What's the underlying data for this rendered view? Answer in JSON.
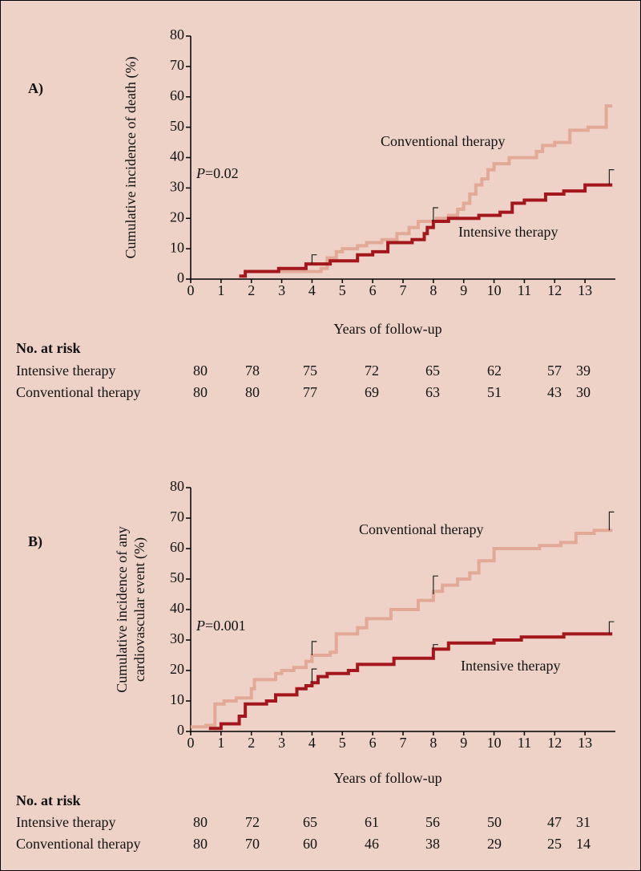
{
  "chart_data": [
    {
      "type": "step",
      "panel_label": "A)",
      "ylabel": [
        "Cumulative incidence of death (%)"
      ],
      "xlabel": "Years of follow-up",
      "p_symbol": "P",
      "p_value": "=0.02",
      "xlim": [
        0,
        14
      ],
      "ylim": [
        0,
        80
      ],
      "xticks": [
        0,
        1,
        2,
        3,
        4,
        5,
        6,
        7,
        8,
        9,
        10,
        11,
        12,
        13
      ],
      "yticks": [
        0,
        10,
        20,
        30,
        40,
        50,
        60,
        70,
        80
      ],
      "series": [
        {
          "name": "Conventional therapy",
          "color": "#e2a996",
          "x": [
            2.7,
            3.8,
            4.3,
            4.5,
            4.8,
            5.0,
            5.5,
            5.8,
            6.3,
            6.8,
            7.2,
            7.5,
            8.1,
            8.5,
            8.8,
            9.0,
            9.2,
            9.4,
            9.6,
            9.8,
            10.0,
            10.5,
            11.4,
            11.6,
            12.0,
            12.5,
            13.1,
            13.7,
            13.9
          ],
          "values": [
            2.5,
            2.5,
            3.5,
            7,
            9,
            10,
            11,
            12,
            13,
            15,
            17,
            19,
            20,
            21,
            23,
            25,
            28,
            31,
            33,
            36,
            38,
            40,
            42,
            44,
            45,
            49,
            50,
            57,
            57
          ],
          "error_bars": []
        },
        {
          "name": "Intensive therapy",
          "color": "#a3161b",
          "x": [
            1.6,
            1.8,
            2.9,
            3.8,
            4.6,
            5.5,
            6.0,
            6.5,
            7.3,
            7.7,
            7.8,
            8.0,
            8.5,
            9.5,
            10.2,
            10.6,
            11.0,
            11.7,
            12.3,
            13.0,
            13.9
          ],
          "values": [
            1,
            2.5,
            3.5,
            5,
            6,
            8,
            9,
            12,
            13,
            15,
            17,
            19,
            20,
            21,
            22,
            25,
            26,
            28,
            29,
            31,
            31
          ],
          "error_bars": [
            {
              "x": 4,
              "value": 5,
              "upper": 8
            },
            {
              "x": 8,
              "value": 19,
              "upper": 23.5
            },
            {
              "x": 13.8,
              "value": 31,
              "upper": 36
            }
          ]
        }
      ],
      "risk_table": {
        "title": "No. at risk",
        "rows": [
          {
            "name": "Intensive therapy",
            "values": [
              80,
              78,
              75,
              72,
              65,
              62,
              57,
              39
            ]
          },
          {
            "name": "Conventional therapy",
            "values": [
              80,
              80,
              77,
              69,
              63,
              51,
              43,
              30
            ]
          }
        ]
      }
    },
    {
      "type": "step",
      "panel_label": "B)",
      "ylabel": [
        "Cumulative incidence of any",
        "cardiovascular event (%)"
      ],
      "xlabel": "Years of follow-up",
      "p_symbol": "P",
      "p_value": "=0.001",
      "xlim": [
        0,
        14
      ],
      "ylim": [
        0,
        80
      ],
      "xticks": [
        0,
        1,
        2,
        3,
        4,
        5,
        6,
        7,
        8,
        9,
        10,
        11,
        12,
        13
      ],
      "yticks": [
        0,
        10,
        20,
        30,
        40,
        50,
        60,
        70,
        80
      ],
      "series": [
        {
          "name": "Conventional therapy",
          "color": "#e2a996",
          "x": [
            0,
            0.5,
            0.8,
            1.1,
            1.5,
            2.0,
            2.1,
            2.8,
            3.0,
            3.4,
            3.8,
            4.0,
            4.6,
            4.8,
            5.5,
            5.8,
            6.6,
            7.5,
            8.0,
            8.3,
            8.8,
            9.2,
            9.5,
            10.0,
            11.5,
            12.2,
            12.7,
            13.3,
            13.9
          ],
          "values": [
            1.5,
            2,
            9,
            10,
            11,
            14,
            17,
            19,
            20,
            21,
            23,
            25,
            26,
            32,
            34,
            37,
            40,
            43,
            46,
            48,
            50,
            52,
            56,
            60,
            61,
            62,
            65,
            66,
            66
          ],
          "error_bars": [
            {
              "x": 4,
              "value": 25,
              "upper": 29.5
            },
            {
              "x": 8,
              "value": 45,
              "upper": 51
            },
            {
              "x": 13.8,
              "value": 66,
              "upper": 72
            }
          ]
        },
        {
          "name": "Intensive therapy",
          "color": "#a3161b",
          "x": [
            0.6,
            1.0,
            1.6,
            1.8,
            2.5,
            2.8,
            3.5,
            3.8,
            4.0,
            4.2,
            4.5,
            5.2,
            5.5,
            6.7,
            8.0,
            8.5,
            10.0,
            10.9,
            12.3,
            13.9
          ],
          "values": [
            1,
            2.5,
            5,
            9,
            10,
            12,
            14,
            15,
            16,
            18,
            19,
            20,
            22,
            24,
            27,
            29,
            30,
            31,
            32,
            32
          ],
          "error_bars": [
            {
              "x": 4,
              "value": 16,
              "upper": 20.5
            },
            {
              "x": 8,
              "value": 27,
              "upper": 28.5
            },
            {
              "x": 13.8,
              "value": 32,
              "upper": 36
            }
          ]
        }
      ],
      "risk_table": {
        "title": "No. at risk",
        "rows": [
          {
            "name": "Intensive therapy",
            "values": [
              80,
              72,
              65,
              61,
              56,
              50,
              47,
              31
            ]
          },
          {
            "name": "Conventional therapy",
            "values": [
              80,
              70,
              60,
              46,
              38,
              29,
              25,
              14
            ]
          }
        ]
      }
    }
  ]
}
